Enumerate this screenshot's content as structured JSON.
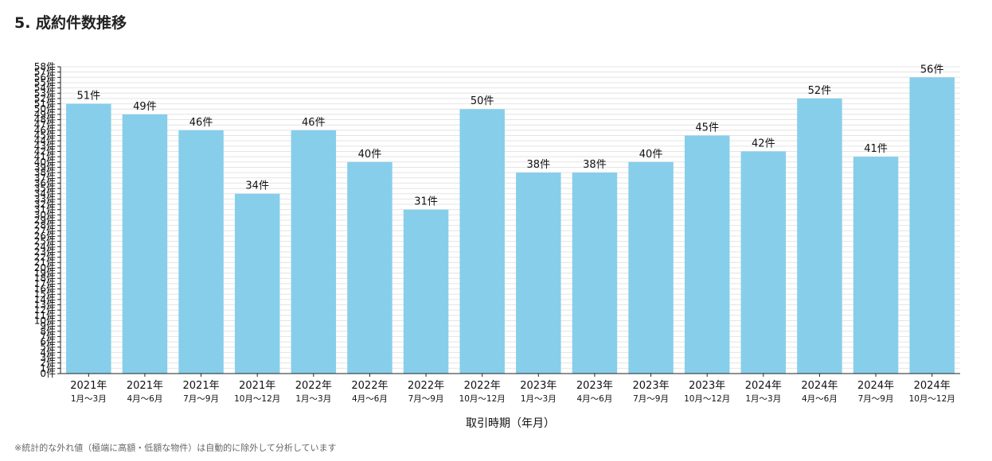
{
  "page": {
    "title": "5. 成約件数推移",
    "footnote": "※統計的な外れ値（極端に高額・低額な物件）は自動的に除外して分析しています"
  },
  "colors": {
    "bar": "#87ceeb",
    "grid": "#e4e4e4",
    "axis": "#222222",
    "text": "#111111"
  },
  "chart_data": {
    "type": "bar",
    "title": "",
    "xlabel": "取引時期（年月）",
    "ylabel": "",
    "unit": "件",
    "ylim": [
      0,
      58
    ],
    "ytick_step": 1,
    "grid": true,
    "categories": [
      [
        "2021年",
        "1月～3月"
      ],
      [
        "2021年",
        "4月～6月"
      ],
      [
        "2021年",
        "7月～9月"
      ],
      [
        "2021年",
        "10月～12月"
      ],
      [
        "2022年",
        "1月～3月"
      ],
      [
        "2022年",
        "4月～6月"
      ],
      [
        "2022年",
        "7月～9月"
      ],
      [
        "2022年",
        "10月～12月"
      ],
      [
        "2023年",
        "1月～3月"
      ],
      [
        "2023年",
        "4月～6月"
      ],
      [
        "2023年",
        "7月～9月"
      ],
      [
        "2023年",
        "10月～12月"
      ],
      [
        "2024年",
        "1月～3月"
      ],
      [
        "2024年",
        "4月～6月"
      ],
      [
        "2024年",
        "7月～9月"
      ],
      [
        "2024年",
        "10月～12月"
      ]
    ],
    "values": [
      51,
      49,
      46,
      34,
      46,
      40,
      31,
      50,
      38,
      38,
      40,
      45,
      42,
      52,
      41,
      56
    ],
    "data_labels": [
      "51件",
      "49件",
      "46件",
      "34件",
      "46件",
      "40件",
      "31件",
      "50件",
      "38件",
      "38件",
      "40件",
      "45件",
      "42件",
      "52件",
      "41件",
      "56件"
    ]
  }
}
